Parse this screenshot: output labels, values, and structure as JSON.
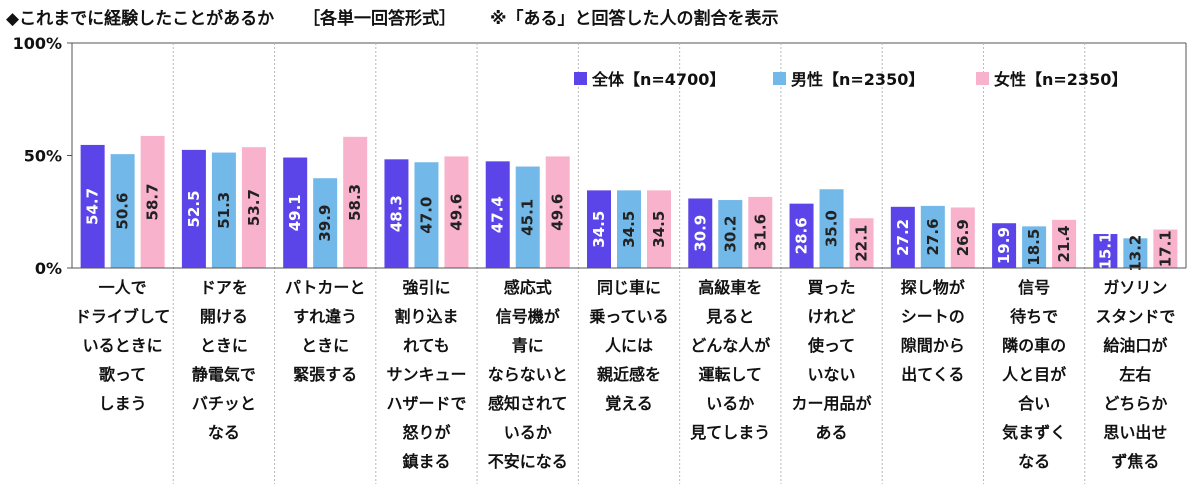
{
  "header": {
    "title": "◆これまでに経験したことがあるか",
    "format": "［各単一回答形式］",
    "note": "※「ある」と回答した人の割合を表示"
  },
  "colors": {
    "total": "#5b45e8",
    "male": "#72b8e8",
    "female": "#f9b2cb",
    "grid": "#b8b8b8",
    "axis": "#555555"
  },
  "chart_data": {
    "type": "bar",
    "title": "◆これまでに経験したことがあるか",
    "ylim": [
      0,
      100
    ],
    "y_ticks": [
      0,
      50,
      100
    ],
    "y_tick_labels": [
      "0%",
      "50%",
      "100%"
    ],
    "grid": false,
    "legend_position": "top-right",
    "categories": [
      [
        "一人で",
        "ドライブして",
        "いるときに",
        "歌って",
        "しまう"
      ],
      [
        "ドアを",
        "開ける",
        "ときに",
        "静電気で",
        "バチッと",
        "なる"
      ],
      [
        "パトカーと",
        "すれ違う",
        "ときに",
        "緊張する"
      ],
      [
        "強引に",
        "割り込ま",
        "れても",
        "サンキュー",
        "ハザードで",
        "怒りが",
        "鎮まる"
      ],
      [
        "感応式",
        "信号機が",
        "青に",
        "ならないと",
        "感知されて",
        "いるか",
        "不安になる"
      ],
      [
        "同じ車に",
        "乗っている",
        "人には",
        "親近感を",
        "覚える"
      ],
      [
        "高級車を",
        "見ると",
        "どんな人が",
        "運転して",
        "いるか",
        "見てしまう"
      ],
      [
        "買った",
        "けれど",
        "使って",
        "いない",
        "カー用品が",
        "ある"
      ],
      [
        "探し物が",
        "シートの",
        "隙間から",
        "出てくる"
      ],
      [
        "信号",
        "待ちで",
        "隣の車の",
        "人と目が",
        "合い",
        "気まずく",
        "なる"
      ],
      [
        "ガソリン",
        "スタンドで",
        "給油口が",
        "左右",
        "どちらか",
        "思い出せ",
        "ず焦る"
      ]
    ],
    "series": [
      {
        "name": "全体【n=4700】",
        "values": [
          54.7,
          52.5,
          49.1,
          48.3,
          47.4,
          34.5,
          30.9,
          28.6,
          27.2,
          19.9,
          15.1
        ]
      },
      {
        "name": "男性【n=2350】",
        "values": [
          50.6,
          51.3,
          39.9,
          47.0,
          45.1,
          34.5,
          30.2,
          35.0,
          27.6,
          18.5,
          13.2
        ]
      },
      {
        "name": "女性【n=2350】",
        "values": [
          58.7,
          53.7,
          58.3,
          49.6,
          49.6,
          34.5,
          31.6,
          22.1,
          26.9,
          21.4,
          17.1
        ]
      }
    ]
  }
}
